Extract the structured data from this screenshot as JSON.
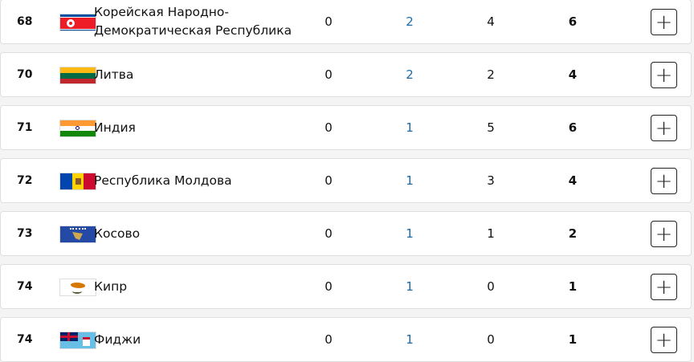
{
  "rows": [
    {
      "rank": "68",
      "country": "Корейская Народно-Демократическая Республика",
      "flag": "north-korea",
      "gold": "0",
      "silver": "2",
      "bronze": "4",
      "total": "6",
      "expand": "+"
    },
    {
      "rank": "70",
      "country": "Литва",
      "flag": "lithuania",
      "gold": "0",
      "silver": "2",
      "bronze": "2",
      "total": "4",
      "expand": "+"
    },
    {
      "rank": "71",
      "country": "Индия",
      "flag": "india",
      "gold": "0",
      "silver": "1",
      "bronze": "5",
      "total": "6",
      "expand": "+"
    },
    {
      "rank": "72",
      "country": "Республика Молдова",
      "flag": "moldova",
      "gold": "0",
      "silver": "1",
      "bronze": "3",
      "total": "4",
      "expand": "+"
    },
    {
      "rank": "73",
      "country": "Косово",
      "flag": "kosovo",
      "gold": "0",
      "silver": "1",
      "bronze": "1",
      "total": "2",
      "expand": "+"
    },
    {
      "rank": "74",
      "country": "Кипр",
      "flag": "cyprus",
      "gold": "0",
      "silver": "1",
      "bronze": "0",
      "total": "1",
      "expand": "+"
    },
    {
      "rank": "74",
      "country": "Фиджи",
      "flag": "fiji",
      "gold": "0",
      "silver": "1",
      "bronze": "0",
      "total": "1",
      "expand": "+"
    }
  ],
  "colors": {
    "silver_text": "#1c6aa6"
  }
}
